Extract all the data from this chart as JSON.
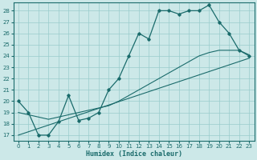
{
  "xlabel": "Humidex (Indice chaleur)",
  "background_color": "#cce8e8",
  "grid_color": "#99cccc",
  "line_color": "#1a6b6b",
  "xlim": [
    -0.5,
    23.5
  ],
  "ylim": [
    16.5,
    28.7
  ],
  "xticks": [
    0,
    1,
    2,
    3,
    4,
    5,
    6,
    7,
    8,
    9,
    10,
    11,
    12,
    13,
    14,
    15,
    16,
    17,
    18,
    19,
    20,
    21,
    22,
    23
  ],
  "yticks": [
    17,
    18,
    19,
    20,
    21,
    22,
    23,
    24,
    25,
    26,
    27,
    28
  ],
  "line1_x": [
    0,
    1,
    2,
    3,
    4,
    5,
    6,
    7,
    8,
    9,
    10,
    11,
    12,
    13,
    14,
    15,
    16,
    17,
    18,
    19,
    20,
    21,
    22,
    23
  ],
  "line1_y": [
    20,
    19,
    17,
    17,
    18.2,
    20.5,
    18.3,
    18.5,
    19,
    21,
    22,
    24,
    26,
    25.5,
    28,
    28,
    27.7,
    28,
    28,
    28.5,
    27,
    26,
    24.5,
    24
  ],
  "line2_x": [
    0,
    1,
    2,
    3,
    4,
    5,
    6,
    7,
    8,
    9,
    10,
    11,
    12,
    13,
    14,
    15,
    16,
    17,
    18,
    19,
    20,
    21,
    22,
    23
  ],
  "line2_y": [
    19,
    18.8,
    18.6,
    18.4,
    18.6,
    18.8,
    19.0,
    19.2,
    19.4,
    19.6,
    20.0,
    20.5,
    21.0,
    21.5,
    22.0,
    22.5,
    23.0,
    23.5,
    24.0,
    24.3,
    24.5,
    24.5,
    24.5,
    24.1
  ],
  "line3_x": [
    0,
    23
  ],
  "line3_y": [
    17.0,
    23.8
  ]
}
